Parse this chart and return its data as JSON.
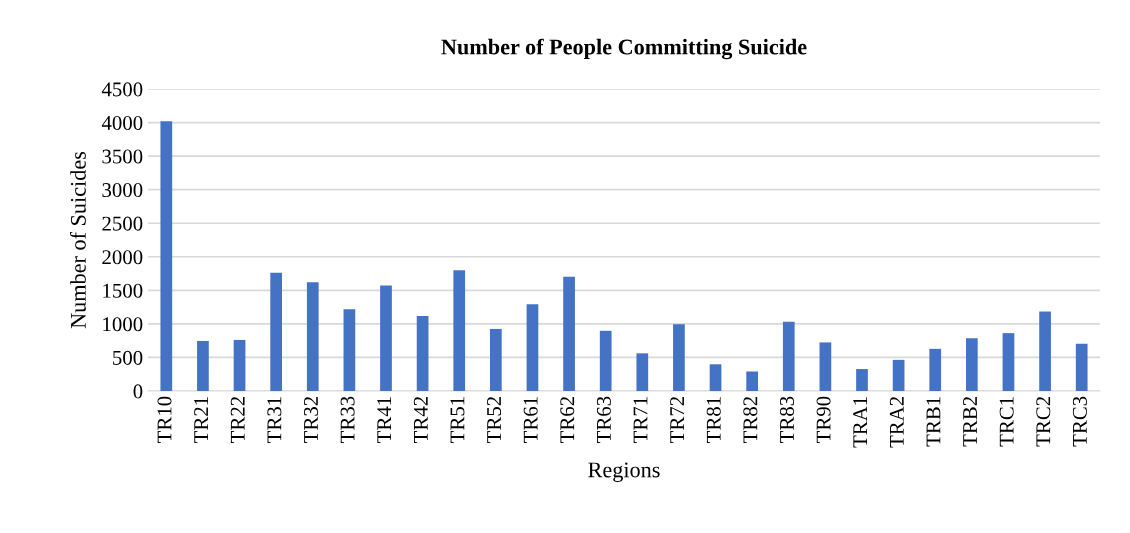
{
  "chart_data": {
    "type": "bar",
    "title": "Number of People Committing Suicide",
    "xlabel": "Regions",
    "ylabel": "Number of Suicides",
    "categories": [
      "TR10",
      "TR21",
      "TR22",
      "TR31",
      "TR32",
      "TR33",
      "TR41",
      "TR42",
      "TR51",
      "TR52",
      "TR61",
      "TR62",
      "TR63",
      "TR71",
      "TR72",
      "TR81",
      "TR82",
      "TR83",
      "TR90",
      "TRA1",
      "TRA2",
      "TRB1",
      "TRB2",
      "TRC1",
      "TRC2",
      "TRC3"
    ],
    "values": [
      4020,
      746,
      761,
      1761,
      1622,
      1219,
      1572,
      1119,
      1801,
      925,
      1294,
      1701,
      897,
      561,
      995,
      398,
      291,
      1031,
      724,
      327,
      464,
      628,
      786,
      862,
      1184,
      704
    ],
    "color": "#4472c4",
    "ylim": [
      0,
      4500
    ],
    "yticks": [
      0,
      500,
      1000,
      1500,
      2000,
      2500,
      3000,
      3500,
      4000,
      4500
    ],
    "grid": "y",
    "legend": false
  }
}
